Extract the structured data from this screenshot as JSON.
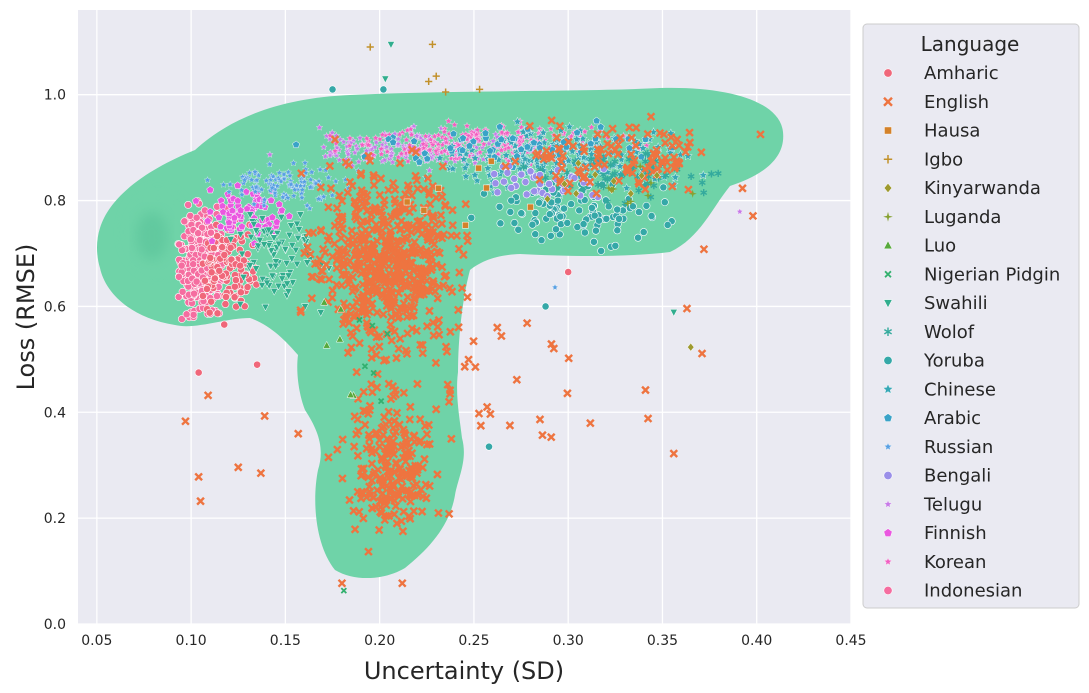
{
  "chart_data": {
    "type": "scatter",
    "xlabel": "Uncertainty (SD)",
    "ylabel": "Loss (RMSE)",
    "xlim": [
      0.04,
      0.45
    ],
    "ylim": [
      0.0,
      1.16
    ],
    "xticks": [
      "0.05",
      "0.10",
      "0.15",
      "0.20",
      "0.25",
      "0.30",
      "0.35",
      "0.40",
      "0.45"
    ],
    "yticks": [
      "0.0",
      "0.2",
      "0.4",
      "0.6",
      "0.8",
      "1.0"
    ],
    "grid": true,
    "background_color": "#eaeaf2",
    "density_color": "#6fd3a8",
    "legend": {
      "title": "Language",
      "placement": "outside-right",
      "entries": [
        {
          "name": "Amharic",
          "marker": "circle",
          "color": "#f0677a"
        },
        {
          "name": "English",
          "marker": "x",
          "color": "#ee7440"
        },
        {
          "name": "Hausa",
          "marker": "square",
          "color": "#d4822a"
        },
        {
          "name": "Igbo",
          "marker": "plus",
          "color": "#c2912b"
        },
        {
          "name": "Kinyarwanda",
          "marker": "diamond",
          "color": "#9e9a2f"
        },
        {
          "name": "Luganda",
          "marker": "star4",
          "color": "#86a131"
        },
        {
          "name": "Luo",
          "marker": "triangle-up",
          "color": "#58aa3d"
        },
        {
          "name": "Nigerian Pidgin",
          "marker": "x-small",
          "color": "#33b06e"
        },
        {
          "name": "Swahili",
          "marker": "triangle-down",
          "color": "#31ad8e"
        },
        {
          "name": "Wolof",
          "marker": "asterisk",
          "color": "#34aa9d"
        },
        {
          "name": "Yoruba",
          "marker": "circle",
          "color": "#35a8a8"
        },
        {
          "name": "Chinese",
          "marker": "star",
          "color": "#37a8b6"
        },
        {
          "name": "Arabic",
          "marker": "pentagon",
          "color": "#3aa3c8"
        },
        {
          "name": "Russian",
          "marker": "star-small",
          "color": "#58a0e3"
        },
        {
          "name": "Bengali",
          "marker": "circle",
          "color": "#9a8fe9"
        },
        {
          "name": "Telugu",
          "marker": "star-small",
          "color": "#c77ae8"
        },
        {
          "name": "Finnish",
          "marker": "pentagon",
          "color": "#ea57e0"
        },
        {
          "name": "Korean",
          "marker": "star-small",
          "color": "#f25fc2"
        },
        {
          "name": "Indonesian",
          "marker": "circle",
          "color": "#f56da0"
        }
      ]
    },
    "clusters": [
      {
        "series": "Indonesian",
        "x": [
          0.09,
          0.12
        ],
        "y": [
          0.55,
          0.82
        ],
        "n": 420
      },
      {
        "series": "Amharic",
        "x": [
          0.1,
          0.14
        ],
        "y": [
          0.55,
          0.8
        ],
        "n": 120
      },
      {
        "series": "Finnish",
        "x": [
          0.1,
          0.16
        ],
        "y": [
          0.7,
          0.86
        ],
        "n": 80
      },
      {
        "series": "Swahili",
        "x": [
          0.11,
          0.18
        ],
        "y": [
          0.55,
          0.82
        ],
        "n": 90
      },
      {
        "series": "Russian",
        "x": [
          0.1,
          0.2
        ],
        "y": [
          0.78,
          0.88
        ],
        "n": 110
      },
      {
        "series": "Telugu",
        "x": [
          0.13,
          0.3
        ],
        "y": [
          0.85,
          0.95
        ],
        "n": 170
      },
      {
        "series": "Korean",
        "x": [
          0.15,
          0.36
        ],
        "y": [
          0.86,
          0.96
        ],
        "n": 230
      },
      {
        "series": "Chinese",
        "x": [
          0.2,
          0.4
        ],
        "y": [
          0.8,
          0.96
        ],
        "n": 200
      },
      {
        "series": "Yoruba",
        "x": [
          0.24,
          0.37
        ],
        "y": [
          0.7,
          0.86
        ],
        "n": 110
      },
      {
        "series": "Arabic",
        "x": [
          0.15,
          0.38
        ],
        "y": [
          0.85,
          0.96
        ],
        "n": 60
      },
      {
        "series": "Wolof",
        "x": [
          0.27,
          0.39
        ],
        "y": [
          0.78,
          0.92
        ],
        "n": 70
      },
      {
        "series": "Bengali",
        "x": [
          0.24,
          0.34
        ],
        "y": [
          0.78,
          0.88
        ],
        "n": 40
      },
      {
        "series": "English",
        "x": [
          0.15,
          0.26
        ],
        "y": [
          0.45,
          0.94
        ],
        "n": 600
      },
      {
        "series": "English",
        "x": [
          0.17,
          0.24
        ],
        "y": [
          0.1,
          0.5
        ],
        "n": 220
      },
      {
        "series": "English",
        "x": [
          0.26,
          0.4
        ],
        "y": [
          0.78,
          0.98
        ],
        "n": 110
      },
      {
        "series": "English",
        "x": [
          0.1,
          0.37
        ],
        "y": [
          0.22,
          0.7
        ],
        "n": 40
      },
      {
        "series": "Kinyarwanda",
        "x": [
          0.28,
          0.38
        ],
        "y": [
          0.75,
          0.9
        ],
        "n": 10
      },
      {
        "series": "Luganda",
        "x": [
          0.3,
          0.38
        ],
        "y": [
          0.75,
          0.9
        ],
        "n": 8
      },
      {
        "series": "Luo",
        "x": [
          0.16,
          0.2
        ],
        "y": [
          0.4,
          0.7
        ],
        "n": 6
      },
      {
        "series": "Hausa",
        "x": [
          0.16,
          0.34
        ],
        "y": [
          0.7,
          0.9
        ],
        "n": 8
      },
      {
        "series": "Nigerian Pidgin",
        "x": [
          0.17,
          0.22
        ],
        "y": [
          0.06,
          0.8
        ],
        "n": 6
      }
    ],
    "outliers": [
      {
        "series": "Igbo",
        "x": 0.195,
        "y": 1.09
      },
      {
        "series": "Igbo",
        "x": 0.228,
        "y": 1.095
      },
      {
        "series": "Igbo",
        "x": 0.23,
        "y": 1.035
      },
      {
        "series": "Igbo",
        "x": 0.235,
        "y": 1.005
      },
      {
        "series": "Igbo",
        "x": 0.253,
        "y": 1.01
      },
      {
        "series": "Igbo",
        "x": 0.226,
        "y": 1.025
      },
      {
        "series": "Swahili",
        "x": 0.206,
        "y": 1.095
      },
      {
        "series": "Swahili",
        "x": 0.203,
        "y": 1.03
      },
      {
        "series": "Yoruba",
        "x": 0.175,
        "y": 1.01
      },
      {
        "series": "Yoruba",
        "x": 0.202,
        "y": 1.01
      },
      {
        "series": "Yoruba",
        "x": 0.258,
        "y": 0.335
      },
      {
        "series": "Yoruba",
        "x": 0.288,
        "y": 0.6
      },
      {
        "series": "Amharic",
        "x": 0.3,
        "y": 0.665
      },
      {
        "series": "Amharic",
        "x": 0.104,
        "y": 0.475
      },
      {
        "series": "Amharic",
        "x": 0.135,
        "y": 0.49
      },
      {
        "series": "English",
        "x": 0.097,
        "y": 0.383
      },
      {
        "series": "English",
        "x": 0.104,
        "y": 0.278
      },
      {
        "series": "English",
        "x": 0.105,
        "y": 0.232
      },
      {
        "series": "English",
        "x": 0.125,
        "y": 0.296
      },
      {
        "series": "English",
        "x": 0.137,
        "y": 0.285
      },
      {
        "series": "English",
        "x": 0.139,
        "y": 0.393
      },
      {
        "series": "English",
        "x": 0.109,
        "y": 0.432
      },
      {
        "series": "English",
        "x": 0.291,
        "y": 0.353
      },
      {
        "series": "English",
        "x": 0.257,
        "y": 0.41
      },
      {
        "series": "English",
        "x": 0.341,
        "y": 0.442
      },
      {
        "series": "English",
        "x": 0.356,
        "y": 0.322
      },
      {
        "series": "English",
        "x": 0.363,
        "y": 0.596
      },
      {
        "series": "English",
        "x": 0.371,
        "y": 0.511
      },
      {
        "series": "English",
        "x": 0.372,
        "y": 0.708
      },
      {
        "series": "English",
        "x": 0.398,
        "y": 0.771
      },
      {
        "series": "English",
        "x": 0.402,
        "y": 0.925
      },
      {
        "series": "English",
        "x": 0.212,
        "y": 0.077
      },
      {
        "series": "English",
        "x": 0.18,
        "y": 0.077
      },
      {
        "series": "Kinyarwanda",
        "x": 0.365,
        "y": 0.523
      },
      {
        "series": "Swahili",
        "x": 0.356,
        "y": 0.589
      },
      {
        "series": "Nigerian Pidgin",
        "x": 0.181,
        "y": 0.063
      },
      {
        "series": "Telugu",
        "x": 0.391,
        "y": 0.779
      },
      {
        "series": "Russian",
        "x": 0.293,
        "y": 0.636
      }
    ]
  }
}
